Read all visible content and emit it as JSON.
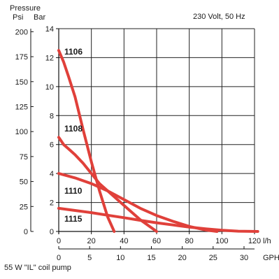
{
  "header": {
    "pressure_label": "Pressure",
    "psi_label": "Psi",
    "bar_label": "Bar",
    "voltage_label": "230 Volt, 50 Hz"
  },
  "footer": {
    "caption": "55 W \"IL\" coil pump"
  },
  "chart_data": {
    "type": "line",
    "title": "",
    "xlabel": "l/h",
    "x2label": "GPH",
    "ylabel": "Bar",
    "y2label": "Psi",
    "xlim": [
      0,
      120
    ],
    "ylim": [
      0,
      14
    ],
    "x_ticks": [
      0,
      20,
      40,
      60,
      80,
      100,
      120
    ],
    "gph_ticks": [
      0,
      5,
      10,
      15,
      20,
      25,
      30
    ],
    "bar_ticks": [
      0,
      2,
      4,
      6,
      8,
      10,
      12,
      14
    ],
    "psi_ticks": [
      0,
      25,
      50,
      75,
      100,
      125,
      150,
      175,
      200
    ],
    "grid": true,
    "line_color": "#e0403a",
    "series": [
      {
        "name": "1106",
        "x": [
          0,
          3,
          6,
          10,
          15,
          20,
          25,
          30,
          34
        ],
        "y": [
          12.5,
          11.7,
          10.7,
          9.3,
          7.0,
          4.8,
          2.8,
          1.0,
          0
        ]
      },
      {
        "name": "1108",
        "x": [
          0,
          3,
          6,
          10,
          15,
          20,
          25,
          30,
          40,
          50,
          60
        ],
        "y": [
          6.5,
          6.0,
          5.7,
          5.3,
          4.7,
          4.0,
          3.3,
          2.8,
          1.8,
          0.8,
          0
        ]
      },
      {
        "name": "1110",
        "x": [
          0,
          10,
          20,
          30,
          40,
          50,
          60,
          70,
          80,
          90,
          97
        ],
        "y": [
          4.0,
          3.7,
          3.3,
          2.8,
          2.2,
          1.6,
          1.1,
          0.7,
          0.35,
          0.1,
          0
        ]
      },
      {
        "name": "1115",
        "x": [
          0,
          10,
          20,
          30,
          40,
          50,
          60,
          70,
          80,
          90,
          100,
          110,
          122
        ],
        "y": [
          1.6,
          1.45,
          1.3,
          1.12,
          0.95,
          0.77,
          0.6,
          0.45,
          0.3,
          0.18,
          0.08,
          0.02,
          0
        ]
      }
    ],
    "line_labels": [
      "1106",
      "1108",
      "1110",
      "1115"
    ]
  }
}
